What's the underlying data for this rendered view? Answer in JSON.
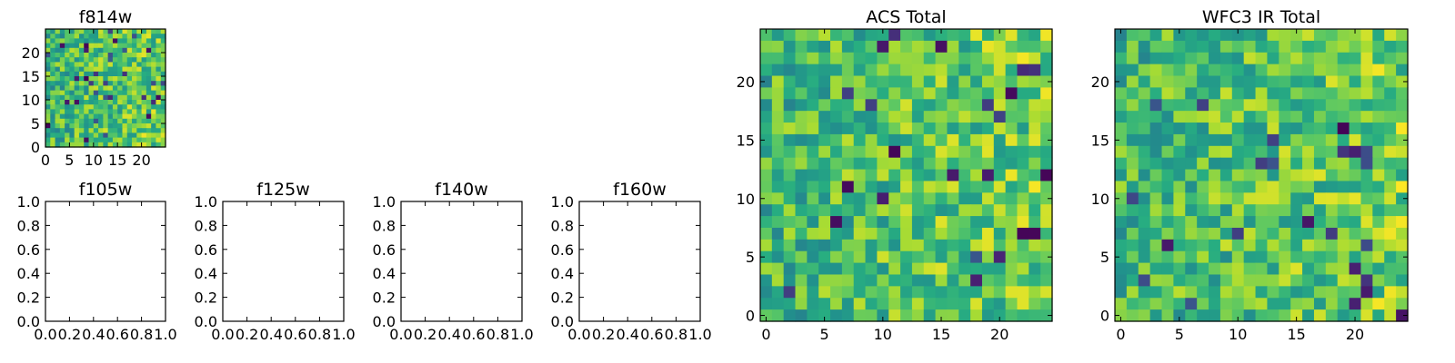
{
  "chart_data": [
    {
      "type": "heatmap",
      "title": "f814w",
      "xlim": [
        0,
        25
      ],
      "ylim": [
        0,
        25
      ],
      "xticks": [
        0,
        5,
        10,
        15,
        20
      ],
      "yticks": [
        0,
        5,
        10,
        15,
        20
      ],
      "grid": false,
      "colormap": "viridis",
      "rows": 25,
      "cols": 25,
      "seed": 814
    },
    {
      "type": "heatmap",
      "title": "f105w",
      "xlim": [
        0.0,
        1.0
      ],
      "ylim": [
        0.0,
        1.0
      ],
      "xticks": [
        "0.0",
        "0.2",
        "0.4",
        "0.6",
        "0.8",
        "1.0"
      ],
      "yticks": [
        "0.0",
        "0.2",
        "0.4",
        "0.6",
        "0.8",
        "1.0"
      ],
      "grid": false,
      "empty": true
    },
    {
      "type": "heatmap",
      "title": "f125w",
      "xlim": [
        0.0,
        1.0
      ],
      "ylim": [
        0.0,
        1.0
      ],
      "xticks": [
        "0.0",
        "0.2",
        "0.4",
        "0.6",
        "0.8",
        "1.0"
      ],
      "yticks": [
        "0.0",
        "0.2",
        "0.4",
        "0.6",
        "0.8",
        "1.0"
      ],
      "grid": false,
      "empty": true
    },
    {
      "type": "heatmap",
      "title": "f140w",
      "xlim": [
        0.0,
        1.0
      ],
      "ylim": [
        0.0,
        1.0
      ],
      "xticks": [
        "0.0",
        "0.2",
        "0.4",
        "0.6",
        "0.8",
        "1.0"
      ],
      "yticks": [
        "0.0",
        "0.2",
        "0.4",
        "0.6",
        "0.8",
        "1.0"
      ],
      "grid": false,
      "empty": true
    },
    {
      "type": "heatmap",
      "title": "f160w",
      "xlim": [
        0.0,
        1.0
      ],
      "ylim": [
        0.0,
        1.0
      ],
      "xticks": [
        "0.0",
        "0.2",
        "0.4",
        "0.6",
        "0.8",
        "1.0"
      ],
      "yticks": [
        "0.0",
        "0.2",
        "0.4",
        "0.6",
        "0.8",
        "1.0"
      ],
      "grid": false,
      "empty": true
    },
    {
      "type": "heatmap",
      "title": "ACS Total",
      "xlim": [
        -0.5,
        24.5
      ],
      "ylim": [
        -0.5,
        24.5
      ],
      "xticks": [
        0,
        5,
        10,
        15,
        20
      ],
      "yticks": [
        0,
        5,
        10,
        15,
        20
      ],
      "grid": false,
      "colormap": "viridis",
      "rows": 25,
      "cols": 25,
      "seed": 1001
    },
    {
      "type": "heatmap",
      "title": "WFC3 IR Total",
      "xlim": [
        -0.5,
        24.5
      ],
      "ylim": [
        -0.5,
        24.5
      ],
      "xticks": [
        0,
        5,
        10,
        15,
        20
      ],
      "yticks": [
        0,
        5,
        10,
        15,
        20
      ],
      "grid": false,
      "colormap": "viridis",
      "rows": 25,
      "cols": 25,
      "seed": 2002
    }
  ]
}
